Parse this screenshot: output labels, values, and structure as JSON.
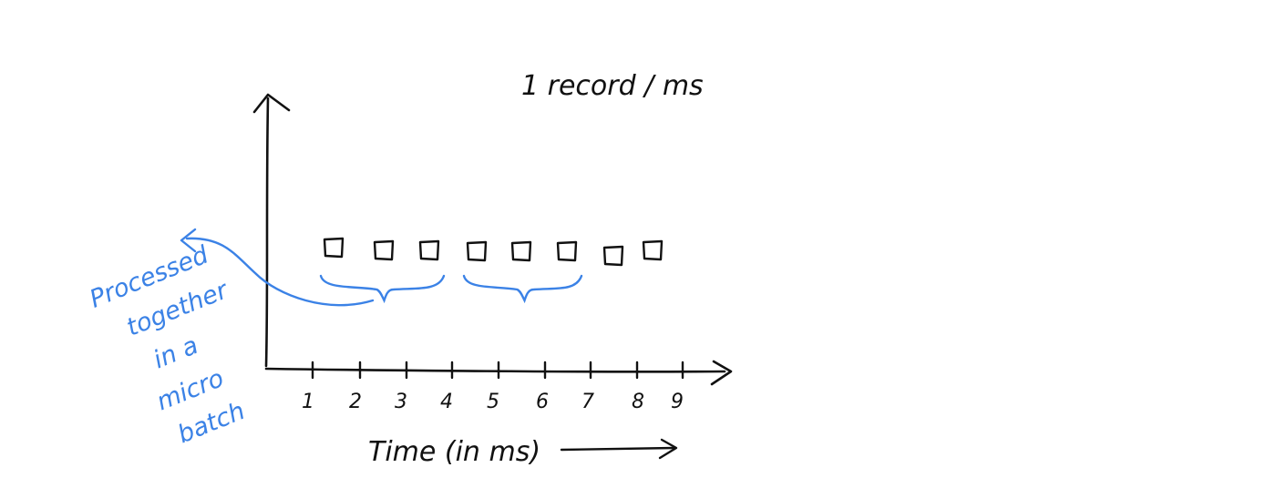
{
  "title": "1 record / ms",
  "x_axis": {
    "label": "Time (in ms)",
    "ticks": [
      "1",
      "2",
      "3",
      "4",
      "5",
      "6",
      "7",
      "8",
      "9"
    ]
  },
  "records": {
    "count": 8,
    "groups": [
      {
        "first": 1,
        "last": 3
      },
      {
        "first": 4,
        "last": 6
      }
    ]
  },
  "annotation": {
    "lines": [
      "Processed",
      "together",
      "in a",
      "micro",
      "batch"
    ]
  },
  "colors": {
    "ink": "#111111",
    "annotation": "#3b82e6"
  }
}
